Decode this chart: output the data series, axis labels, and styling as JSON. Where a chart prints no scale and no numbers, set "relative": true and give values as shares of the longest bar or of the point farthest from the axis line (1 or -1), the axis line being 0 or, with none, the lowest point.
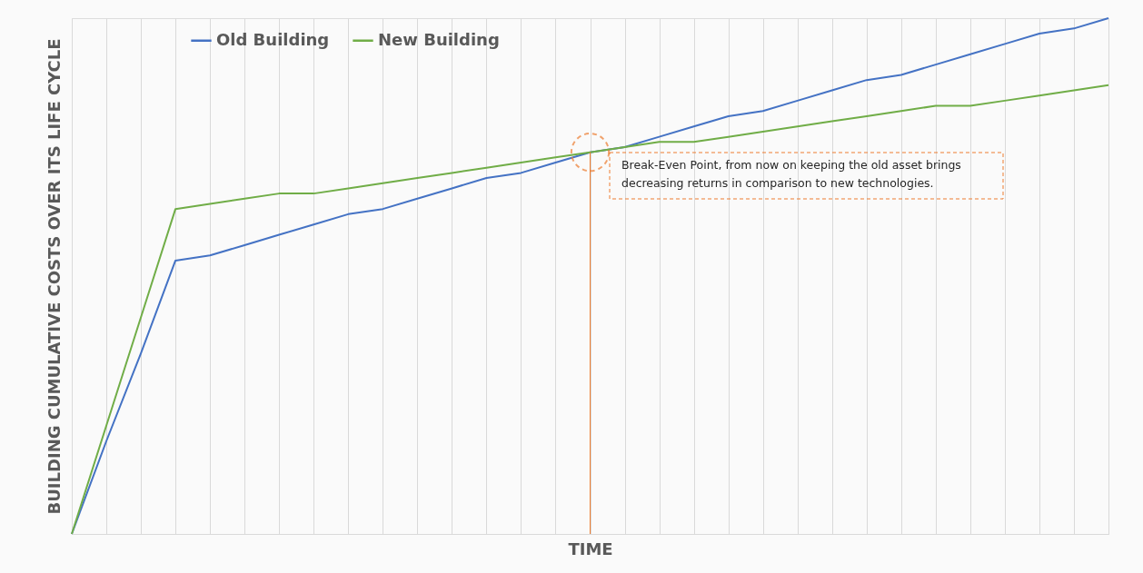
{
  "chart_data": {
    "type": "line",
    "relative": true,
    "xlabel": "TIME",
    "ylabel": "BUILDING CUMULATIVE COSTS OVER ITS LIFE CYCLE",
    "categories": [
      null,
      null,
      null,
      null,
      null,
      null,
      null,
      null,
      null,
      null,
      null,
      null,
      null,
      null,
      null,
      null,
      null,
      null,
      null,
      null,
      null,
      null,
      null,
      null,
      null,
      null,
      null,
      null,
      null,
      null,
      null
    ],
    "series": [
      {
        "name": "Old Building",
        "color": "#4472c4",
        "values": [
          0,
          0.18,
          0.35,
          0.53,
          0.54,
          0.56,
          0.58,
          0.6,
          0.62,
          0.63,
          0.65,
          0.67,
          0.69,
          0.7,
          0.72,
          0.74,
          0.75,
          0.77,
          0.79,
          0.81,
          0.82,
          0.84,
          0.86,
          0.88,
          0.89,
          0.91,
          0.93,
          0.95,
          0.97,
          0.98,
          1
        ]
      },
      {
        "name": "New Building",
        "color": "#70ad47",
        "values": [
          0,
          0.21,
          0.42,
          0.63,
          0.64,
          0.65,
          0.66,
          0.66,
          0.67,
          0.68,
          0.69,
          0.7,
          0.71,
          0.72,
          0.73,
          0.74,
          0.75,
          0.76,
          0.76,
          0.77,
          0.78,
          0.79,
          0.8,
          0.81,
          0.82,
          0.83,
          0.83,
          0.84,
          0.85,
          0.86,
          0.87
        ]
      }
    ],
    "annotations": [
      "Break-Even Point, from now on keeping the old asset brings decreasing returns in comparison to new technologies."
    ],
    "grid": "x",
    "legend": "top left",
    "tick_labels": false,
    "line_style": "solid",
    "marker": "none"
  }
}
